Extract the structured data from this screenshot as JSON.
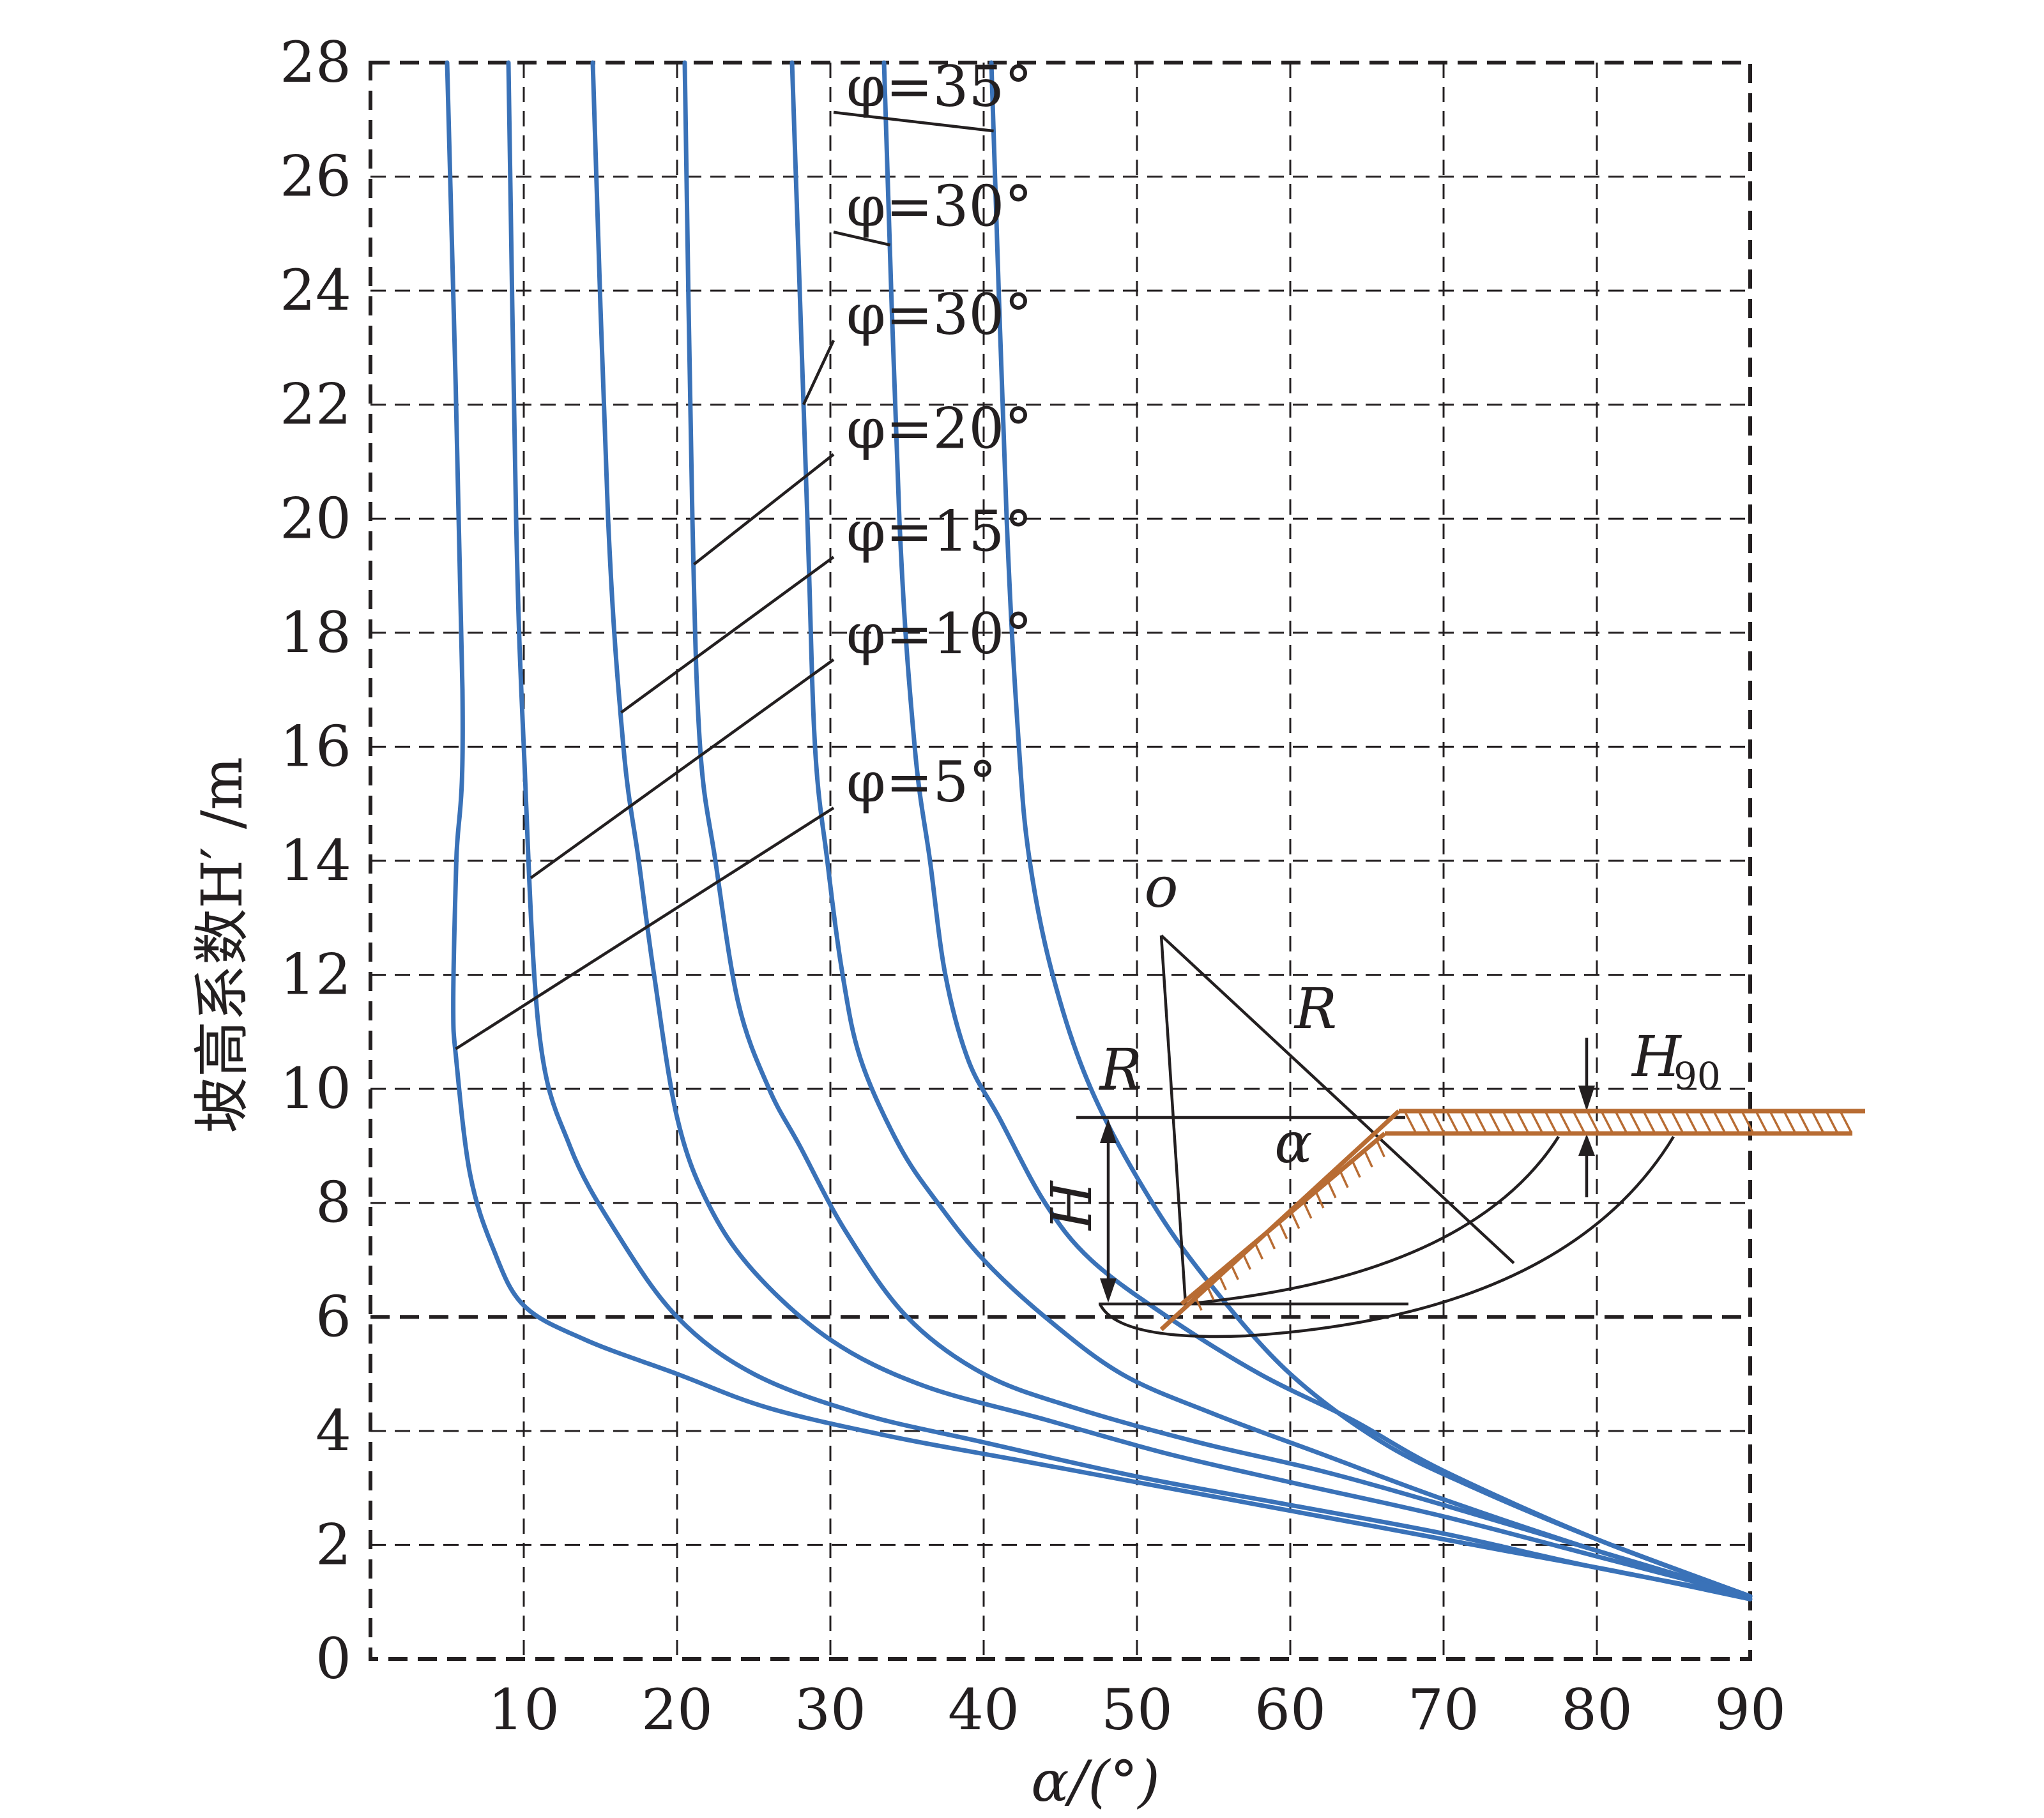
{
  "chart_data": {
    "type": "line",
    "title": "",
    "xlabel": "α/(°)",
    "ylabel": "坡高系数H′ /m",
    "x_ticks": [
      10,
      20,
      30,
      40,
      50,
      60,
      70,
      80,
      90
    ],
    "y_ticks": [
      0,
      2,
      4,
      6,
      8,
      10,
      12,
      14,
      16,
      18,
      20,
      22,
      24,
      26,
      28
    ],
    "xlim": [
      0,
      90
    ],
    "ylim": [
      0,
      28
    ],
    "grid": "dashed",
    "series": [
      {
        "name": "φ=5°",
        "x": [
          5.0,
          6.0,
          5.6,
          5.4,
          5.6,
          6.5,
          8,
          10,
          14,
          20,
          26,
          34,
          42,
          50,
          58,
          66,
          74,
          82,
          90
        ],
        "y": [
          28,
          17,
          14,
          11.5,
          10.5,
          8.5,
          7.2,
          6.2,
          5.6,
          5.0,
          4.4,
          3.9,
          3.5,
          3.1,
          2.7,
          2.3,
          1.9,
          1.5,
          1.05
        ]
      },
      {
        "name": "φ=10°",
        "x": [
          9.0,
          9.5,
          10.0,
          11.0,
          13,
          16,
          20,
          25,
          32,
          40,
          50,
          60,
          70,
          80,
          90
        ],
        "y": [
          28,
          20,
          16,
          11,
          9.0,
          7.5,
          6.0,
          5.0,
          4.3,
          3.8,
          3.2,
          2.7,
          2.2,
          1.6,
          1.1
        ]
      },
      {
        "name": "φ=15°",
        "x": [
          14.5,
          15.5,
          16.5,
          17.5,
          18.5,
          20,
          22,
          25,
          30,
          36,
          44,
          52,
          60,
          70,
          80,
          90
        ],
        "y": [
          28,
          20,
          16,
          14,
          12,
          9.5,
          8.0,
          6.8,
          5.6,
          4.8,
          4.2,
          3.6,
          3.1,
          2.5,
          1.8,
          1.1
        ]
      },
      {
        "name": "φ=20°",
        "x": [
          20.5,
          21.0,
          21.5,
          22.5,
          24,
          26,
          28,
          31,
          35,
          40,
          46,
          54,
          62,
          70,
          80,
          90
        ],
        "y": [
          28,
          20,
          16,
          14,
          11.5,
          10,
          9.0,
          7.5,
          6.0,
          5.0,
          4.4,
          3.8,
          3.3,
          2.7,
          1.9,
          1.1
        ]
      },
      {
        "name": "φ=30°",
        "x": [
          27.5,
          28.5,
          29.0,
          29.8,
          30.8,
          32,
          34.5,
          37,
          40,
          44,
          49,
          55,
          62,
          70,
          80,
          90
        ],
        "y": [
          28,
          20,
          16,
          14,
          12,
          10.5,
          9.0,
          8.0,
          7.0,
          6.0,
          5.0,
          4.3,
          3.6,
          2.8,
          1.9,
          1.1
        ]
      },
      {
        "name": "φ=30°",
        "x": [
          33.5,
          34.5,
          35.5,
          36.5,
          37.5,
          39,
          41,
          44,
          47,
          52,
          58,
          64,
          70,
          80,
          90
        ],
        "y": [
          28,
          20,
          16,
          14,
          12,
          10.5,
          9.5,
          8.0,
          7.0,
          6.0,
          5.0,
          4.2,
          3.3,
          2.1,
          1.1
        ]
      },
      {
        "name": "φ=35°",
        "x": [
          40.5,
          41.5,
          42.3,
          43.0,
          44.5,
          47,
          51,
          55,
          60,
          66,
          72,
          80,
          90
        ],
        "y": [
          28,
          20,
          16,
          14,
          12,
          10,
          8.0,
          6.5,
          5.0,
          3.8,
          3.0,
          2.1,
          1.1
        ]
      }
    ],
    "emphasis_dashed_y": 6,
    "inset_labels": {
      "o": "o",
      "r_left": "R",
      "r_right": "R",
      "h": "H",
      "h90_main": "H",
      "h90_sub": "90",
      "alpha": "α"
    }
  }
}
